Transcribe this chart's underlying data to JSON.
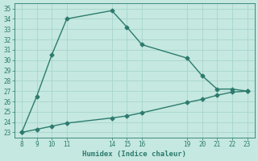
{
  "line1_x": [
    8,
    9,
    10,
    11,
    14,
    15,
    16,
    19,
    20,
    21,
    22,
    23
  ],
  "line1_y": [
    23.0,
    26.5,
    30.5,
    34.0,
    34.8,
    33.2,
    31.5,
    30.2,
    28.5,
    27.2,
    27.2,
    27.0
  ],
  "line2_x": [
    8,
    9,
    10,
    11,
    14,
    15,
    16,
    19,
    20,
    21,
    22,
    23
  ],
  "line2_y": [
    23.0,
    23.3,
    23.6,
    23.9,
    24.4,
    24.6,
    24.9,
    25.9,
    26.2,
    26.6,
    26.9,
    27.0
  ],
  "line_color": "#2d7b6e",
  "bg_color": "#c5e8e0",
  "grid_color": "#a8d5cb",
  "xlabel": "Humidex (Indice chaleur)",
  "xlim": [
    7.5,
    23.5
  ],
  "ylim": [
    22.5,
    35.5
  ],
  "xticks": [
    8,
    9,
    10,
    11,
    14,
    15,
    16,
    19,
    20,
    21,
    22,
    23
  ],
  "yticks": [
    23,
    24,
    25,
    26,
    27,
    28,
    29,
    30,
    31,
    32,
    33,
    34,
    35
  ],
  "marker_size": 2.5,
  "line_width": 1.0,
  "tick_label_color": "#2d7b6e",
  "xlabel_color": "#2d7b6e"
}
